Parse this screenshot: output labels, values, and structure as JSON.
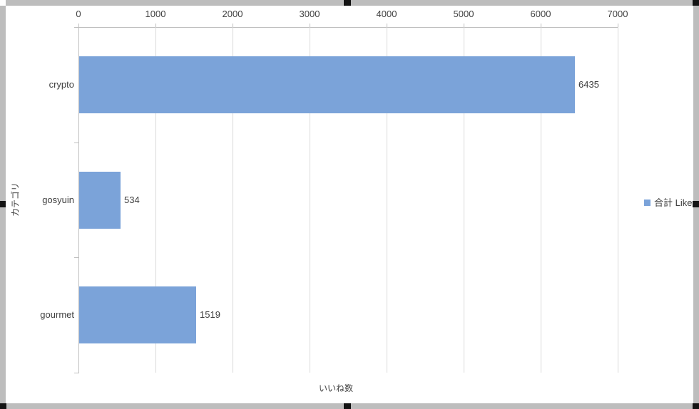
{
  "chart_data": {
    "type": "bar",
    "orientation": "horizontal",
    "categories": [
      "crypto",
      "gosyuin",
      "gourmet"
    ],
    "series": [
      {
        "name": "合計 Like",
        "values": [
          6435,
          534,
          1519
        ]
      }
    ],
    "data_labels_shown": true,
    "xlabel": "いいね数",
    "ylabel": "カテゴリ",
    "xlim": [
      0,
      7000
    ],
    "xticks": [
      0,
      1000,
      2000,
      3000,
      4000,
      5000,
      6000,
      7000
    ],
    "grid": true,
    "legend_position": "right",
    "colors": {
      "bar": "#7ba3d9",
      "axis": "#bfbfbf",
      "gridline": "#d9d9d9",
      "text": "#404040",
      "frame_border": "#bdbdbd",
      "selection_handle": "#141414"
    }
  },
  "legend": {
    "label": "合計 Like",
    "swatch_color": "#7ba3d9"
  }
}
